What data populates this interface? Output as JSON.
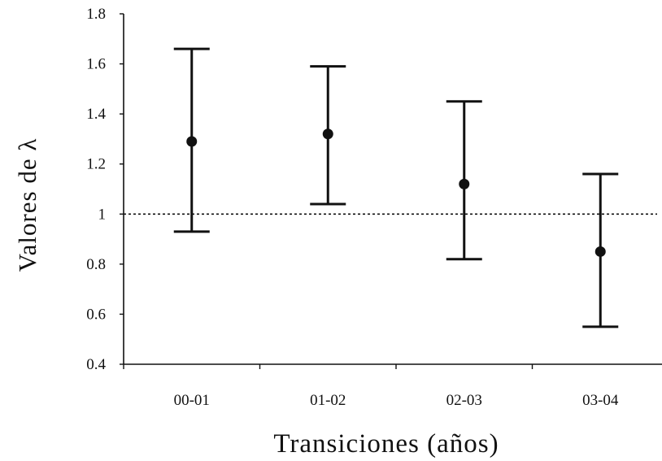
{
  "chart_data": {
    "type": "scatter",
    "title": "",
    "xlabel": "Transiciones (años)",
    "ylabel": "Valores de λ",
    "categories": [
      "00-01",
      "01-02",
      "02-03",
      "03-04"
    ],
    "series": [
      {
        "values": [
          1.29,
          1.32,
          1.12,
          0.85
        ],
        "error_low": [
          0.93,
          1.04,
          0.82,
          0.55
        ],
        "error_high": [
          1.66,
          1.59,
          1.45,
          1.16
        ]
      }
    ],
    "ylim": [
      0.4,
      1.8
    ],
    "yticks": [
      "0.4",
      "0.6",
      "0.8",
      "1",
      "1.2",
      "1.4",
      "1.6",
      "1.8"
    ],
    "reference_line": {
      "y": 1,
      "style": "dotted"
    },
    "grid": false,
    "legend": "none"
  }
}
